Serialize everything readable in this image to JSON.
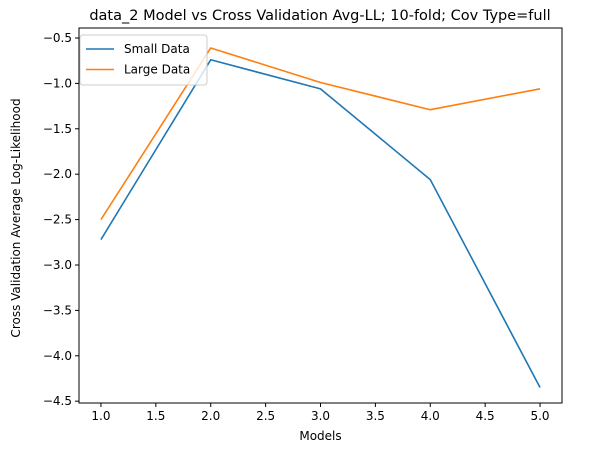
{
  "chart_data": {
    "type": "line",
    "title": "data_2 Model vs Cross Validation Avg-LL; 10-fold; Cov Type=full",
    "xlabel": "Models",
    "ylabel": "Cross Validation Average Log-Likelihood",
    "xlim": [
      0.8,
      5.2
    ],
    "ylim": [
      -4.52,
      -0.39
    ],
    "xticks": [
      1.0,
      1.5,
      2.0,
      2.5,
      3.0,
      3.5,
      4.0,
      4.5,
      5.0
    ],
    "xtick_labels": [
      "1.0",
      "1.5",
      "2.0",
      "2.5",
      "3.0",
      "3.5",
      "4.0",
      "4.5",
      "5.0"
    ],
    "yticks": [
      -0.5,
      -1.0,
      -1.5,
      -2.0,
      -2.5,
      -3.0,
      -3.5,
      -4.0,
      -4.5
    ],
    "ytick_labels": [
      "−0.5",
      "−1.0",
      "−1.5",
      "−2.0",
      "−2.5",
      "−3.0",
      "−3.5",
      "−4.0",
      "−4.5"
    ],
    "grid": false,
    "legend_position": "top-left",
    "x": [
      1,
      2,
      3,
      4,
      5
    ],
    "series": [
      {
        "name": "Small Data",
        "color": "#1f77b4",
        "values": [
          -2.72,
          -0.74,
          -1.06,
          -2.06,
          -4.35
        ]
      },
      {
        "name": "Large Data",
        "color": "#ff7f0e",
        "values": [
          -2.5,
          -0.61,
          -0.99,
          -1.29,
          -1.06
        ]
      }
    ]
  }
}
